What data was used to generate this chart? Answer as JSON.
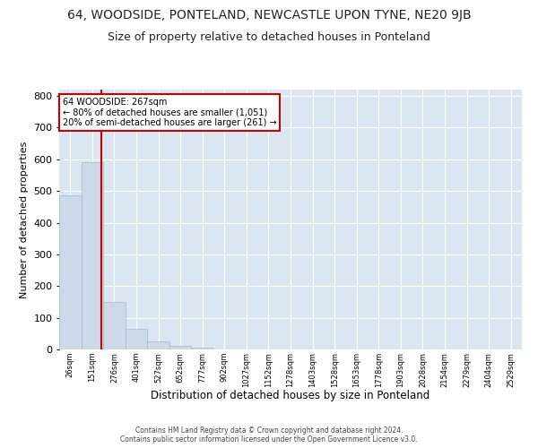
{
  "title": "64, WOODSIDE, PONTELAND, NEWCASTLE UPON TYNE, NE20 9JB",
  "subtitle": "Size of property relative to detached houses in Ponteland",
  "xlabel": "Distribution of detached houses by size in Ponteland",
  "ylabel": "Number of detached properties",
  "bin_labels": [
    "26sqm",
    "151sqm",
    "276sqm",
    "401sqm",
    "527sqm",
    "652sqm",
    "777sqm",
    "902sqm",
    "1027sqm",
    "1152sqm",
    "1278sqm",
    "1403sqm",
    "1528sqm",
    "1653sqm",
    "1778sqm",
    "1903sqm",
    "2028sqm",
    "2154sqm",
    "2279sqm",
    "2404sqm",
    "2529sqm"
  ],
  "bar_values": [
    485,
    590,
    150,
    65,
    25,
    10,
    5,
    0,
    0,
    0,
    0,
    0,
    0,
    0,
    0,
    0,
    0,
    0,
    0,
    0,
    0
  ],
  "bar_color": "#ccd9e8",
  "bar_edge_color": "#a0bcd0",
  "marker_line_color": "#cc0000",
  "annotation_line1": "64 WOODSIDE: 267sqm",
  "annotation_line2": "← 80% of detached houses are smaller (1,051)",
  "annotation_line3": "20% of semi-detached houses are larger (261) →",
  "annotation_box_color": "#cc0000",
  "ylim": [
    0,
    820
  ],
  "yticks": [
    0,
    100,
    200,
    300,
    400,
    500,
    600,
    700,
    800
  ],
  "footer_line1": "Contains HM Land Registry data © Crown copyright and database right 2024.",
  "footer_line2": "Contains public sector information licensed under the Open Government Licence v3.0.",
  "plot_background": "#dce6f0",
  "grid_color": "#ffffff",
  "title_fontsize": 10,
  "subtitle_fontsize": 9
}
